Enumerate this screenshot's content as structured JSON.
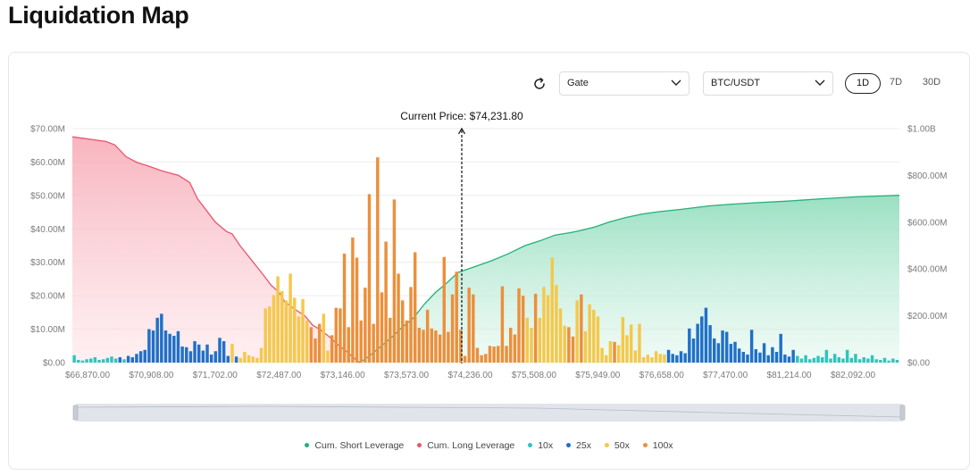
{
  "page": {
    "title": "Liquidation Map"
  },
  "controls": {
    "refresh_icon": "refresh-icon",
    "exchange": "Gate",
    "pair": "BTC/USDT",
    "ranges": [
      "1D",
      "7D",
      "30D"
    ],
    "active_range": "1D"
  },
  "colors": {
    "short": "#22b07a",
    "long": "#e8556f",
    "x10": "#2ec4c0",
    "x25": "#1f70c8",
    "x50": "#f4c84a",
    "x100": "#ec8f3a"
  },
  "chart_data": {
    "type": "bar",
    "current_price_label": "Current Price: $74,231.80",
    "current_price": 74231.8,
    "x_ticks": [
      "$66,870.00",
      "$70,908.00",
      "$71,702.00",
      "$72,487.00",
      "$73,146.00",
      "$73,573.00",
      "$74,236.00",
      "$75,508.00",
      "$75,949.00",
      "$76,658.00",
      "$77,470.00",
      "$81,214.00",
      "$82,092.00"
    ],
    "y_left_ticks": [
      "$0.00",
      "$10.00M",
      "$20.00M",
      "$30.00M",
      "$40.00M",
      "$50.00M",
      "$60.00M",
      "$70.00M"
    ],
    "y_right_ticks": [
      "$0.00",
      "$200.00M",
      "$400.00M",
      "$600.00M",
      "$800.00M",
      "$1.00B"
    ],
    "y_left_range": [
      0,
      70
    ],
    "y_right_range": [
      0,
      1000
    ],
    "unit_left": "M",
    "unit_right": "M",
    "legend": [
      "Cum. Short Leverage",
      "Cum. Long Leverage",
      "10x",
      "25x",
      "50x",
      "100x"
    ],
    "bar_levels": [
      "10x",
      "25x",
      "50x",
      "100x"
    ],
    "bars": [
      {
        "i": 0,
        "lev": "10x",
        "v": 2.2
      },
      {
        "i": 1,
        "lev": "10x",
        "v": 0.8
      },
      {
        "i": 2,
        "lev": "10x",
        "v": 0.6
      },
      {
        "i": 3,
        "lev": "10x",
        "v": 1.0
      },
      {
        "i": 4,
        "lev": "10x",
        "v": 1.2
      },
      {
        "i": 5,
        "lev": "10x",
        "v": 1.6
      },
      {
        "i": 6,
        "lev": "10x",
        "v": 0.8
      },
      {
        "i": 7,
        "lev": "10x",
        "v": 1.0
      },
      {
        "i": 8,
        "lev": "10x",
        "v": 1.4
      },
      {
        "i": 9,
        "lev": "10x",
        "v": 1.8
      },
      {
        "i": 10,
        "lev": "10x",
        "v": 1.2
      },
      {
        "i": 11,
        "lev": "25x",
        "v": 1.6
      },
      {
        "i": 12,
        "lev": "10x",
        "v": 1.0
      },
      {
        "i": 13,
        "lev": "25x",
        "v": 2.0
      },
      {
        "i": 14,
        "lev": "25x",
        "v": 1.6
      },
      {
        "i": 15,
        "lev": "25x",
        "v": 2.6
      },
      {
        "i": 16,
        "lev": "25x",
        "v": 3.4
      },
      {
        "i": 17,
        "lev": "25x",
        "v": 3.8
      },
      {
        "i": 18,
        "lev": "25x",
        "v": 10.0
      },
      {
        "i": 19,
        "lev": "25x",
        "v": 9.6
      },
      {
        "i": 20,
        "lev": "25x",
        "v": 13.4
      },
      {
        "i": 21,
        "lev": "25x",
        "v": 14.6
      },
      {
        "i": 22,
        "lev": "25x",
        "v": 9.6
      },
      {
        "i": 23,
        "lev": "25x",
        "v": 8.6
      },
      {
        "i": 24,
        "lev": "25x",
        "v": 8.0
      },
      {
        "i": 25,
        "lev": "25x",
        "v": 9.4
      },
      {
        "i": 26,
        "lev": "25x",
        "v": 4.8
      },
      {
        "i": 27,
        "lev": "25x",
        "v": 4.6
      },
      {
        "i": 28,
        "lev": "25x",
        "v": 3.4
      },
      {
        "i": 29,
        "lev": "25x",
        "v": 6.4
      },
      {
        "i": 30,
        "lev": "25x",
        "v": 5.4
      },
      {
        "i": 31,
        "lev": "25x",
        "v": 3.6
      },
      {
        "i": 32,
        "lev": "25x",
        "v": 5.4
      },
      {
        "i": 33,
        "lev": "25x",
        "v": 2.4
      },
      {
        "i": 34,
        "lev": "25x",
        "v": 3.4
      },
      {
        "i": 35,
        "lev": "25x",
        "v": 7.4
      },
      {
        "i": 36,
        "lev": "25x",
        "v": 6.4
      },
      {
        "i": 37,
        "lev": "25x",
        "v": 2.0
      },
      {
        "i": 38,
        "lev": "50x",
        "v": 5.6
      },
      {
        "i": 39,
        "lev": "25x",
        "v": 1.8
      },
      {
        "i": 40,
        "lev": "50x",
        "v": 1.4
      },
      {
        "i": 41,
        "lev": "50x",
        "v": 3.2
      },
      {
        "i": 42,
        "lev": "50x",
        "v": 2.2
      },
      {
        "i": 43,
        "lev": "50x",
        "v": 1.8
      },
      {
        "i": 44,
        "lev": "50x",
        "v": 1.4
      },
      {
        "i": 45,
        "lev": "50x",
        "v": 4.4
      },
      {
        "i": 46,
        "lev": "50x",
        "v": 16.2
      },
      {
        "i": 47,
        "lev": "50x",
        "v": 16.8
      },
      {
        "i": 48,
        "lev": "50x",
        "v": 20.2
      },
      {
        "i": 49,
        "lev": "50x",
        "v": 25.8
      },
      {
        "i": 50,
        "lev": "50x",
        "v": 21.4
      },
      {
        "i": 51,
        "lev": "50x",
        "v": 18.6
      },
      {
        "i": 52,
        "lev": "50x",
        "v": 26.6
      },
      {
        "i": 53,
        "lev": "50x",
        "v": 19.4
      },
      {
        "i": 54,
        "lev": "50x",
        "v": 13.8
      },
      {
        "i": 55,
        "lev": "50x",
        "v": 19.0
      },
      {
        "i": 56,
        "lev": "50x",
        "v": 12.6
      },
      {
        "i": 57,
        "lev": "100x",
        "v": 10.6
      },
      {
        "i": 58,
        "lev": "100x",
        "v": 7.2
      },
      {
        "i": 59,
        "lev": "100x",
        "v": 11.6
      },
      {
        "i": 60,
        "lev": "50x",
        "v": 14.6
      },
      {
        "i": 61,
        "lev": "50x",
        "v": 3.6
      },
      {
        "i": 62,
        "lev": "100x",
        "v": 8.2
      },
      {
        "i": 63,
        "lev": "100x",
        "v": 16.4
      },
      {
        "i": 64,
        "lev": "100x",
        "v": 16.2
      },
      {
        "i": 65,
        "lev": "100x",
        "v": 32.6
      },
      {
        "i": 66,
        "lev": "100x",
        "v": 10.6
      },
      {
        "i": 67,
        "lev": "100x",
        "v": 37.4
      },
      {
        "i": 68,
        "lev": "100x",
        "v": 31.4
      },
      {
        "i": 69,
        "lev": "100x",
        "v": 12.6
      },
      {
        "i": 70,
        "lev": "100x",
        "v": 22.4
      },
      {
        "i": 71,
        "lev": "100x",
        "v": 50.4
      },
      {
        "i": 72,
        "lev": "100x",
        "v": 11.6
      },
      {
        "i": 73,
        "lev": "100x",
        "v": 61.4
      },
      {
        "i": 74,
        "lev": "100x",
        "v": 21.0
      },
      {
        "i": 75,
        "lev": "100x",
        "v": 36.2
      },
      {
        "i": 76,
        "lev": "100x",
        "v": 13.4
      },
      {
        "i": 77,
        "lev": "100x",
        "v": 48.8
      },
      {
        "i": 78,
        "lev": "100x",
        "v": 26.6
      },
      {
        "i": 79,
        "lev": "100x",
        "v": 18.6
      },
      {
        "i": 80,
        "lev": "100x",
        "v": 12.6
      },
      {
        "i": 81,
        "lev": "100x",
        "v": 22.6
      },
      {
        "i": 82,
        "lev": "100x",
        "v": 33.0
      },
      {
        "i": 83,
        "lev": "100x",
        "v": 10.4
      },
      {
        "i": 84,
        "lev": "100x",
        "v": 9.8
      },
      {
        "i": 85,
        "lev": "100x",
        "v": 15.8
      },
      {
        "i": 86,
        "lev": "100x",
        "v": 10.2
      },
      {
        "i": 87,
        "lev": "100x",
        "v": 9.6
      },
      {
        "i": 88,
        "lev": "100x",
        "v": 8.4
      },
      {
        "i": 89,
        "lev": "100x",
        "v": 31.6
      },
      {
        "i": 90,
        "lev": "100x",
        "v": 9.2
      },
      {
        "i": 91,
        "lev": "100x",
        "v": 20.4
      },
      {
        "i": 92,
        "lev": "100x",
        "v": 27.2
      },
      {
        "i": 93,
        "lev": "100x",
        "v": 9.8
      },
      {
        "i": 94,
        "lev": "100x",
        "v": 2.0
      },
      {
        "i": 95,
        "lev": "100x",
        "v": 22.4
      },
      {
        "i": 96,
        "lev": "100x",
        "v": 20.4
      },
      {
        "i": 97,
        "lev": "100x",
        "v": 4.4
      },
      {
        "i": 98,
        "lev": "100x",
        "v": 2.2
      },
      {
        "i": 99,
        "lev": "100x",
        "v": 2.6
      },
      {
        "i": 100,
        "lev": "100x",
        "v": 5.0
      },
      {
        "i": 101,
        "lev": "100x",
        "v": 4.8
      },
      {
        "i": 102,
        "lev": "100x",
        "v": 5.0
      },
      {
        "i": 103,
        "lev": "100x",
        "v": 22.8
      },
      {
        "i": 104,
        "lev": "100x",
        "v": 5.0
      },
      {
        "i": 105,
        "lev": "100x",
        "v": 10.4
      },
      {
        "i": 106,
        "lev": "100x",
        "v": 8.4
      },
      {
        "i": 107,
        "lev": "100x",
        "v": 22.2
      },
      {
        "i": 108,
        "lev": "100x",
        "v": 20.0
      },
      {
        "i": 109,
        "lev": "50x",
        "v": 13.4
      },
      {
        "i": 110,
        "lev": "50x",
        "v": 10.4
      },
      {
        "i": 111,
        "lev": "100x",
        "v": 20.6
      },
      {
        "i": 112,
        "lev": "50x",
        "v": 13.4
      },
      {
        "i": 113,
        "lev": "50x",
        "v": 22.6
      },
      {
        "i": 114,
        "lev": "50x",
        "v": 20.2
      },
      {
        "i": 115,
        "lev": "50x",
        "v": 31.4
      },
      {
        "i": 116,
        "lev": "50x",
        "v": 23.2
      },
      {
        "i": 117,
        "lev": "50x",
        "v": 16.2
      },
      {
        "i": 118,
        "lev": "50x",
        "v": 11.0
      },
      {
        "i": 119,
        "lev": "100x",
        "v": 10.6
      },
      {
        "i": 120,
        "lev": "100x",
        "v": 7.8
      },
      {
        "i": 121,
        "lev": "50x",
        "v": 18.6
      },
      {
        "i": 122,
        "lev": "100x",
        "v": 20.4
      },
      {
        "i": 123,
        "lev": "50x",
        "v": 9.4
      },
      {
        "i": 124,
        "lev": "50x",
        "v": 17.4
      },
      {
        "i": 125,
        "lev": "50x",
        "v": 15.8
      },
      {
        "i": 126,
        "lev": "50x",
        "v": 13.8
      },
      {
        "i": 127,
        "lev": "50x",
        "v": 4.4
      },
      {
        "i": 128,
        "lev": "50x",
        "v": 2.2
      },
      {
        "i": 129,
        "lev": "50x",
        "v": 6.4
      },
      {
        "i": 130,
        "lev": "100x",
        "v": 6.2
      },
      {
        "i": 131,
        "lev": "50x",
        "v": 5.2
      },
      {
        "i": 132,
        "lev": "50x",
        "v": 13.6
      },
      {
        "i": 133,
        "lev": "50x",
        "v": 8.2
      },
      {
        "i": 134,
        "lev": "50x",
        "v": 11.4
      },
      {
        "i": 135,
        "lev": "50x",
        "v": 3.6
      },
      {
        "i": 136,
        "lev": "50x",
        "v": 11.6
      },
      {
        "i": 137,
        "lev": "50x",
        "v": 1.6
      },
      {
        "i": 138,
        "lev": "50x",
        "v": 2.4
      },
      {
        "i": 139,
        "lev": "50x",
        "v": 1.6
      },
      {
        "i": 140,
        "lev": "50x",
        "v": 3.4
      },
      {
        "i": 141,
        "lev": "50x",
        "v": 2.6
      },
      {
        "i": 142,
        "lev": "50x",
        "v": 2.4
      },
      {
        "i": 143,
        "lev": "25x",
        "v": 3.8
      },
      {
        "i": 144,
        "lev": "25x",
        "v": 2.6
      },
      {
        "i": 145,
        "lev": "25x",
        "v": 2.2
      },
      {
        "i": 146,
        "lev": "25x",
        "v": 3.4
      },
      {
        "i": 147,
        "lev": "25x",
        "v": 2.8
      },
      {
        "i": 148,
        "lev": "25x",
        "v": 10.2
      },
      {
        "i": 149,
        "lev": "25x",
        "v": 7.2
      },
      {
        "i": 150,
        "lev": "25x",
        "v": 11.6
      },
      {
        "i": 151,
        "lev": "25x",
        "v": 13.8
      },
      {
        "i": 152,
        "lev": "25x",
        "v": 16.4
      },
      {
        "i": 153,
        "lev": "25x",
        "v": 11.2
      },
      {
        "i": 154,
        "lev": "25x",
        "v": 7.2
      },
      {
        "i": 155,
        "lev": "25x",
        "v": 5.8
      },
      {
        "i": 156,
        "lev": "25x",
        "v": 9.6
      },
      {
        "i": 157,
        "lev": "25x",
        "v": 9.2
      },
      {
        "i": 158,
        "lev": "25x",
        "v": 5.6
      },
      {
        "i": 159,
        "lev": "25x",
        "v": 6.2
      },
      {
        "i": 160,
        "lev": "25x",
        "v": 4.2
      },
      {
        "i": 161,
        "lev": "25x",
        "v": 3.2
      },
      {
        "i": 162,
        "lev": "25x",
        "v": 2.4
      },
      {
        "i": 163,
        "lev": "25x",
        "v": 9.8
      },
      {
        "i": 164,
        "lev": "25x",
        "v": 4.0
      },
      {
        "i": 165,
        "lev": "25x",
        "v": 3.0
      },
      {
        "i": 166,
        "lev": "25x",
        "v": 5.8
      },
      {
        "i": 167,
        "lev": "25x",
        "v": 2.2
      },
      {
        "i": 168,
        "lev": "25x",
        "v": 4.6
      },
      {
        "i": 169,
        "lev": "25x",
        "v": 3.2
      },
      {
        "i": 170,
        "lev": "25x",
        "v": 8.6
      },
      {
        "i": 171,
        "lev": "25x",
        "v": 2.4
      },
      {
        "i": 172,
        "lev": "25x",
        "v": 1.8
      },
      {
        "i": 173,
        "lev": "25x",
        "v": 3.8
      },
      {
        "i": 174,
        "lev": "10x",
        "v": 2.0
      },
      {
        "i": 175,
        "lev": "10x",
        "v": 1.2
      },
      {
        "i": 176,
        "lev": "10x",
        "v": 2.2
      },
      {
        "i": 177,
        "lev": "10x",
        "v": 1.0
      },
      {
        "i": 178,
        "lev": "10x",
        "v": 1.4
      },
      {
        "i": 179,
        "lev": "10x",
        "v": 2.0
      },
      {
        "i": 180,
        "lev": "10x",
        "v": 1.6
      },
      {
        "i": 181,
        "lev": "10x",
        "v": 3.8
      },
      {
        "i": 182,
        "lev": "10x",
        "v": 1.2
      },
      {
        "i": 183,
        "lev": "10x",
        "v": 2.6
      },
      {
        "i": 184,
        "lev": "10x",
        "v": 1.6
      },
      {
        "i": 185,
        "lev": "10x",
        "v": 1.2
      },
      {
        "i": 186,
        "lev": "10x",
        "v": 3.8
      },
      {
        "i": 187,
        "lev": "10x",
        "v": 1.4
      },
      {
        "i": 188,
        "lev": "10x",
        "v": 2.6
      },
      {
        "i": 189,
        "lev": "10x",
        "v": 1.0
      },
      {
        "i": 190,
        "lev": "10x",
        "v": 1.6
      },
      {
        "i": 191,
        "lev": "10x",
        "v": 1.2
      },
      {
        "i": 192,
        "lev": "10x",
        "v": 2.2
      },
      {
        "i": 193,
        "lev": "10x",
        "v": 1.0
      },
      {
        "i": 194,
        "lev": "10x",
        "v": 0.8
      },
      {
        "i": 195,
        "lev": "10x",
        "v": 1.4
      },
      {
        "i": 196,
        "lev": "10x",
        "v": 0.6
      },
      {
        "i": 197,
        "lev": "10x",
        "v": 1.2
      },
      {
        "i": 198,
        "lev": "10x",
        "v": 0.8
      }
    ],
    "bar_count": 199,
    "cum_long": {
      "name": "Cum. Long Leverage",
      "axis": "right",
      "points": [
        [
          0,
          965
        ],
        [
          15,
          955
        ],
        [
          30,
          945
        ],
        [
          38,
          930
        ],
        [
          48,
          880
        ],
        [
          58,
          855
        ],
        [
          68,
          840
        ],
        [
          80,
          820
        ],
        [
          95,
          800
        ],
        [
          105,
          770
        ],
        [
          112,
          700
        ],
        [
          120,
          650
        ],
        [
          128,
          600
        ],
        [
          138,
          560
        ],
        [
          143,
          550
        ],
        [
          150,
          500
        ],
        [
          155,
          470
        ],
        [
          160,
          440
        ],
        [
          170,
          380
        ],
        [
          178,
          330
        ],
        [
          185,
          300
        ],
        [
          190,
          260
        ],
        [
          200,
          225
        ],
        [
          208,
          200
        ],
        [
          215,
          160
        ],
        [
          222,
          140
        ],
        [
          230,
          110
        ],
        [
          238,
          75
        ],
        [
          246,
          45
        ],
        [
          252,
          20
        ],
        [
          257,
          0
        ]
      ]
    },
    "cum_short": {
      "name": "Cum. Short Leverage",
      "axis": "right",
      "points": [
        [
          257,
          0
        ],
        [
          265,
          25
        ],
        [
          275,
          65
        ],
        [
          285,
          105
        ],
        [
          295,
          150
        ],
        [
          305,
          190
        ],
        [
          315,
          250
        ],
        [
          325,
          300
        ],
        [
          335,
          340
        ],
        [
          345,
          385
        ],
        [
          360,
          410
        ],
        [
          375,
          435
        ],
        [
          390,
          465
        ],
        [
          405,
          500
        ],
        [
          418,
          520
        ],
        [
          432,
          545
        ],
        [
          445,
          555
        ],
        [
          455,
          565
        ],
        [
          468,
          580
        ],
        [
          480,
          600
        ],
        [
          495,
          620
        ],
        [
          510,
          635
        ],
        [
          525,
          645
        ],
        [
          545,
          655
        ],
        [
          570,
          670
        ],
        [
          590,
          677
        ],
        [
          610,
          683
        ],
        [
          640,
          690
        ],
        [
          670,
          700
        ],
        [
          700,
          708
        ],
        [
          722,
          712
        ],
        [
          740,
          715
        ]
      ]
    }
  }
}
